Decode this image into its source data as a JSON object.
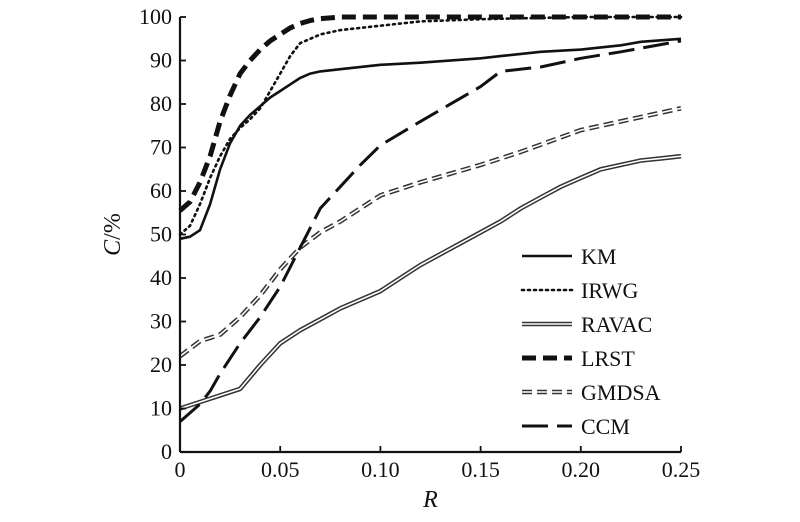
{
  "chart_data": {
    "type": "line",
    "xlabel": "R",
    "ylabel": "C/%",
    "ylabel_var": "C",
    "ylabel_unit": "/%",
    "xlim": [
      0,
      0.25
    ],
    "ylim": [
      0,
      100
    ],
    "x_ticks": [
      0,
      0.05,
      0.1,
      0.15,
      0.2,
      0.25
    ],
    "x_tick_labels": [
      "0",
      "0.05",
      "0.10",
      "0.15",
      "0.20",
      "0.25"
    ],
    "y_ticks": [
      0,
      10,
      20,
      30,
      40,
      50,
      60,
      70,
      80,
      90,
      100
    ],
    "y_tick_labels": [
      "0",
      "10",
      "20",
      "30",
      "40",
      "50",
      "60",
      "70",
      "80",
      "90",
      "100"
    ],
    "grid": false,
    "legend_position": "bottom-right",
    "series": [
      {
        "name": "KM",
        "style": "solid",
        "x": [
          0,
          0.005,
          0.01,
          0.015,
          0.02,
          0.025,
          0.03,
          0.035,
          0.04,
          0.045,
          0.05,
          0.055,
          0.06,
          0.065,
          0.07,
          0.08,
          0.1,
          0.12,
          0.15,
          0.16,
          0.18,
          0.2,
          0.22,
          0.23,
          0.25
        ],
        "y": [
          49,
          49.5,
          51,
          57,
          65,
          71,
          75,
          77.5,
          79.5,
          81.5,
          83,
          84.5,
          86,
          87,
          87.5,
          88,
          89,
          89.5,
          90.5,
          91,
          92,
          92.5,
          93.5,
          94.3,
          95
        ]
      },
      {
        "name": "IRWG",
        "style": "dotted",
        "x": [
          0,
          0.005,
          0.01,
          0.015,
          0.02,
          0.025,
          0.03,
          0.035,
          0.04,
          0.045,
          0.05,
          0.055,
          0.06,
          0.065,
          0.07,
          0.08,
          0.1,
          0.12,
          0.15,
          0.2,
          0.25
        ],
        "y": [
          50,
          52,
          57,
          63,
          68,
          72,
          74.5,
          76.5,
          79,
          83,
          87,
          91,
          94,
          95,
          96,
          97,
          98,
          99,
          99.5,
          100,
          100
        ]
      },
      {
        "name": "RAVAC",
        "style": "double",
        "x": [
          0,
          0.01,
          0.02,
          0.03,
          0.04,
          0.05,
          0.06,
          0.07,
          0.08,
          0.1,
          0.11,
          0.12,
          0.13,
          0.14,
          0.15,
          0.16,
          0.17,
          0.18,
          0.19,
          0.2,
          0.21,
          0.22,
          0.23,
          0.24,
          0.25
        ],
        "y": [
          10,
          11.5,
          13,
          14.5,
          20,
          25,
          28,
          30.5,
          33,
          37,
          40,
          43,
          45.5,
          48,
          50.5,
          53,
          56,
          58.5,
          61,
          63,
          65,
          66,
          67,
          67.5,
          68
        ]
      },
      {
        "name": "LRST",
        "style": "heavy-dashed",
        "x": [
          0,
          0.005,
          0.01,
          0.015,
          0.02,
          0.025,
          0.03,
          0.035,
          0.04,
          0.045,
          0.05,
          0.055,
          0.06,
          0.065,
          0.07,
          0.08,
          0.1,
          0.15,
          0.2,
          0.25
        ],
        "y": [
          55.5,
          57.5,
          62,
          68,
          76,
          82,
          87,
          90,
          92.5,
          94.5,
          96,
          97.5,
          98.5,
          99.2,
          99.6,
          100,
          100,
          100,
          100,
          100
        ]
      },
      {
        "name": "GMDSA",
        "style": "double-dashed",
        "x": [
          0,
          0.01,
          0.02,
          0.03,
          0.04,
          0.05,
          0.06,
          0.07,
          0.08,
          0.1,
          0.12,
          0.15,
          0.17,
          0.2,
          0.22,
          0.25
        ],
        "y": [
          22,
          25.5,
          27,
          31,
          36,
          42,
          47,
          50.5,
          53,
          59,
          62,
          66,
          69,
          74,
          76,
          79
        ]
      },
      {
        "name": "CCM",
        "style": "long-dashed",
        "x": [
          0,
          0.005,
          0.01,
          0.015,
          0.02,
          0.03,
          0.04,
          0.05,
          0.06,
          0.07,
          0.08,
          0.09,
          0.1,
          0.12,
          0.15,
          0.16,
          0.18,
          0.2,
          0.22,
          0.25
        ],
        "y": [
          7,
          9,
          11,
          14,
          18,
          25,
          31,
          38,
          47,
          56,
          61,
          66,
          70.5,
          76,
          84,
          87.5,
          88.5,
          90.5,
          92,
          94.5
        ]
      }
    ]
  }
}
